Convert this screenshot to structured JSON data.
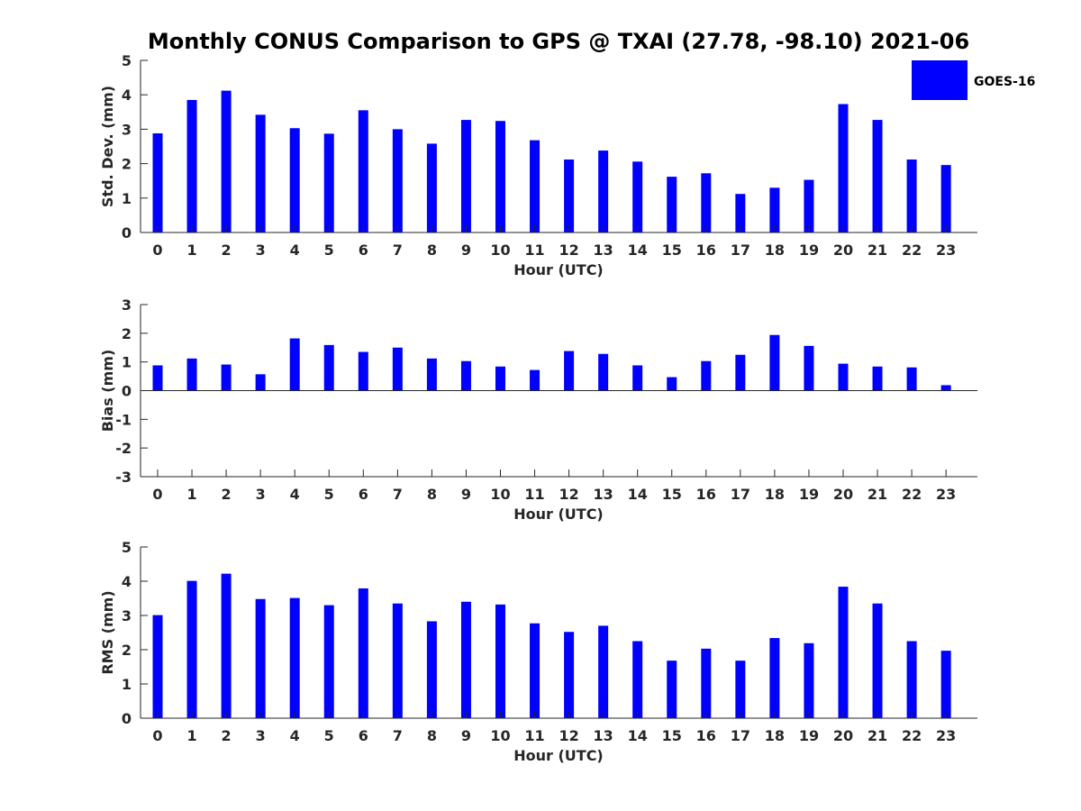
{
  "figure": {
    "title": "Monthly CONUS Comparison to GPS @ TXAI (27.78, -98.10) 2021-06",
    "legend_label": "GOES-16"
  },
  "colors": {
    "bar": "#0000ff",
    "axis": "#262626"
  },
  "chart_data": [
    {
      "type": "bar",
      "title": "Monthly CONUS Comparison to GPS @ TXAI (27.78, -98.10) 2021-06",
      "xlabel": "Hour (UTC)",
      "ylabel": "Std. Dev. (mm)",
      "ylim": [
        0,
        5
      ],
      "yticks": [
        0,
        1,
        2,
        3,
        4,
        5
      ],
      "categories": [
        "0",
        "1",
        "2",
        "3",
        "4",
        "5",
        "6",
        "7",
        "8",
        "9",
        "10",
        "11",
        "12",
        "13",
        "14",
        "15",
        "16",
        "17",
        "18",
        "19",
        "20",
        "21",
        "22",
        "23"
      ],
      "series": [
        {
          "name": "GOES-16",
          "values": [
            2.88,
            3.85,
            4.12,
            3.42,
            3.03,
            2.87,
            3.55,
            3.0,
            2.58,
            3.27,
            3.24,
            2.68,
            2.12,
            2.38,
            2.06,
            1.62,
            1.72,
            1.12,
            1.3,
            1.53,
            3.73,
            3.27,
            2.12,
            1.96
          ]
        }
      ],
      "legend": "top-right",
      "grid": false
    },
    {
      "type": "bar",
      "xlabel": "Hour (UTC)",
      "ylabel": "Bias (mm)",
      "ylim": [
        -3,
        3
      ],
      "yticks": [
        -3,
        -2,
        -1,
        0,
        1,
        2,
        3
      ],
      "categories": [
        "0",
        "1",
        "2",
        "3",
        "4",
        "5",
        "6",
        "7",
        "8",
        "9",
        "10",
        "11",
        "12",
        "13",
        "14",
        "15",
        "16",
        "17",
        "18",
        "19",
        "20",
        "21",
        "22",
        "23"
      ],
      "series": [
        {
          "name": "GOES-16",
          "values": [
            0.88,
            1.12,
            0.91,
            0.57,
            1.82,
            1.59,
            1.35,
            1.5,
            1.12,
            1.03,
            0.84,
            0.72,
            1.38,
            1.28,
            0.88,
            0.47,
            1.03,
            1.25,
            1.94,
            1.56,
            0.94,
            0.84,
            0.81,
            0.19
          ]
        }
      ],
      "grid": false
    },
    {
      "type": "bar",
      "xlabel": "Hour (UTC)",
      "ylabel": "RMS (mm)",
      "ylim": [
        0,
        5
      ],
      "yticks": [
        0,
        1,
        2,
        3,
        4,
        5
      ],
      "categories": [
        "0",
        "1",
        "2",
        "3",
        "4",
        "5",
        "6",
        "7",
        "8",
        "9",
        "10",
        "11",
        "12",
        "13",
        "14",
        "15",
        "16",
        "17",
        "18",
        "19",
        "20",
        "21",
        "22",
        "23"
      ],
      "series": [
        {
          "name": "GOES-16",
          "values": [
            3.01,
            4.01,
            4.22,
            3.48,
            3.51,
            3.3,
            3.79,
            3.35,
            2.83,
            3.4,
            3.32,
            2.77,
            2.52,
            2.7,
            2.25,
            1.68,
            2.03,
            1.68,
            2.34,
            2.19,
            3.84,
            3.35,
            2.25,
            1.97
          ]
        }
      ],
      "grid": false
    }
  ]
}
